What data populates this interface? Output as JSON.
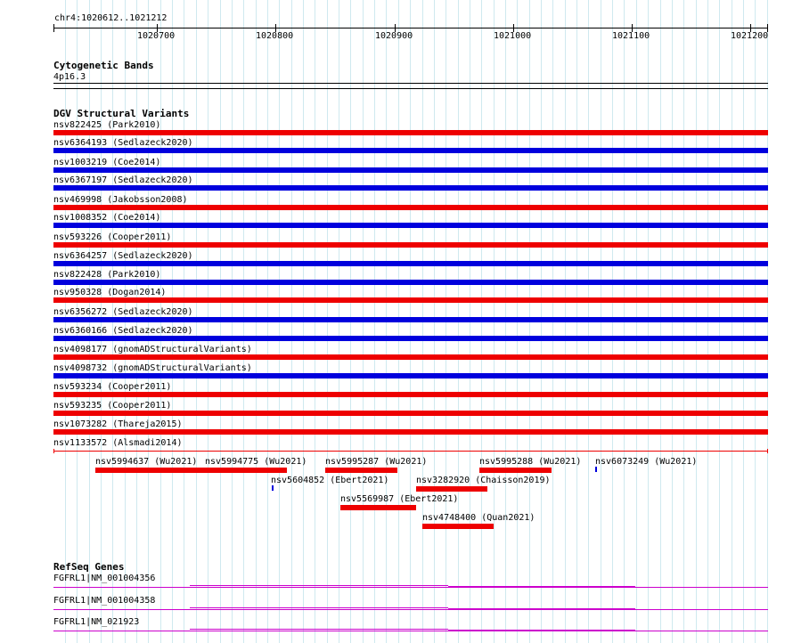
{
  "ruler": {
    "region_label": "chr4:1020612..1021212",
    "ticks": [
      "1020700",
      "1020800",
      "1020900",
      "1021000",
      "1021100",
      "1021200"
    ]
  },
  "cytoband": {
    "title": "Cytogenetic Bands",
    "band": "4p16.3"
  },
  "dgv": {
    "title": "DGV Structural Variants",
    "full_rows": [
      {
        "label": "nsv822425 (Park2010)",
        "color": "#ee0000"
      },
      {
        "label": "nsv6364193 (Sedlazeck2020)",
        "color": "#0000dd"
      },
      {
        "label": "nsv1003219 (Coe2014)",
        "color": "#0000dd"
      },
      {
        "label": "nsv6367197 (Sedlazeck2020)",
        "color": "#0000dd"
      },
      {
        "label": "nsv469998 (Jakobsson2008)",
        "color": "#ee0000"
      },
      {
        "label": "nsv1008352 (Coe2014)",
        "color": "#0000dd"
      },
      {
        "label": "nsv593226 (Cooper2011)",
        "color": "#ee0000"
      },
      {
        "label": "nsv6364257 (Sedlazeck2020)",
        "color": "#0000dd"
      },
      {
        "label": "nsv822428 (Park2010)",
        "color": "#0000dd"
      },
      {
        "label": "nsv950328 (Dogan2014)",
        "color": "#ee0000"
      },
      {
        "label": "nsv6356272 (Sedlazeck2020)",
        "color": "#0000dd"
      },
      {
        "label": "nsv6360166 (Sedlazeck2020)",
        "color": "#0000dd"
      },
      {
        "label": "nsv4098177 (gnomADStructuralVariants)",
        "color": "#ee0000"
      },
      {
        "label": "nsv4098732 (gnomADStructuralVariants)",
        "color": "#0000dd"
      },
      {
        "label": "nsv593234 (Cooper2011)",
        "color": "#ee0000"
      },
      {
        "label": "nsv593235 (Cooper2011)",
        "color": "#ee0000"
      },
      {
        "label": "nsv1073282 (Thareja2015)",
        "color": "#ee0000"
      },
      {
        "label": "nsv1133572 (Alsmadi2014)",
        "color": "#ee0000"
      }
    ],
    "partial_features": [
      {
        "label": "nsv5994637 (Wu2021)",
        "color": "#ee0000"
      },
      {
        "label": "nsv5994775 (Wu2021)",
        "color": "#ee0000"
      },
      {
        "label": "nsv5995287 (Wu2021)",
        "color": "#ee0000"
      },
      {
        "label": "nsv5995288 (Wu2021)",
        "color": "#ee0000"
      },
      {
        "label": "nsv6073249 (Wu2021)",
        "color": "#0000dd"
      },
      {
        "label": "nsv5604852 (Ebert2021)",
        "color": "#0000dd"
      },
      {
        "label": "nsv3282920 (Chaisson2019)",
        "color": "#ee0000"
      },
      {
        "label": "nsv5569987 (Ebert2021)",
        "color": "#ee0000"
      },
      {
        "label": "nsv4748400 (Quan2021)",
        "color": "#ee0000"
      }
    ]
  },
  "refseq": {
    "title": "RefSeq Genes",
    "genes": [
      {
        "label": "FGFRL1|NM_001004356"
      },
      {
        "label": "FGFRL1|NM_001004358"
      },
      {
        "label": "FGFRL1|NM_021923"
      }
    ],
    "color": "#cc00cc"
  }
}
